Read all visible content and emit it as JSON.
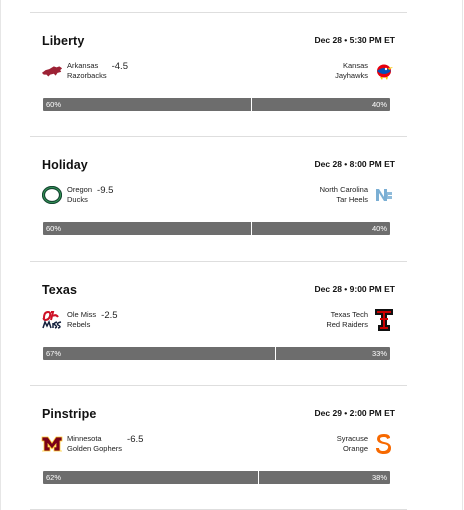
{
  "games": [
    {
      "bowl": "Liberty",
      "time": "Dec 28 • 5:30 PM ET",
      "away": {
        "line1": "Arkansas",
        "line2": "Razorbacks",
        "spread": "-4.5",
        "logo": "arkansas-razorback-logo",
        "color": "#9d2235"
      },
      "home": {
        "line1": "Kansas",
        "line2": "Jayhawks",
        "logo": "kansas-jayhawk-logo",
        "color": "#0051ba"
      },
      "pick": {
        "away_pct": "60%",
        "home_pct": "40%",
        "away_share": 0.6
      }
    },
    {
      "bowl": "Holiday",
      "time": "Dec 28 • 8:00 PM ET",
      "away": {
        "line1": "Oregon",
        "line2": "Ducks",
        "spread": "-9.5",
        "logo": "oregon-o-logo",
        "color": "#154733"
      },
      "home": {
        "line1": "North Carolina",
        "line2": "Tar Heels",
        "logo": "unc-nc-logo",
        "color": "#7bafd4"
      },
      "pick": {
        "away_pct": "60%",
        "home_pct": "40%",
        "away_share": 0.6
      }
    },
    {
      "bowl": "Texas",
      "time": "Dec 28 • 9:00 PM ET",
      "away": {
        "line1": "Ole Miss",
        "line2": "Rebels",
        "spread": "-2.5",
        "logo": "ole-miss-script-logo",
        "color": "#ce1126"
      },
      "home": {
        "line1": "Texas Tech",
        "line2": "Red Raiders",
        "logo": "texas-tech-double-t-logo",
        "color": "#cc0000"
      },
      "pick": {
        "away_pct": "67%",
        "home_pct": "33%",
        "away_share": 0.67
      }
    },
    {
      "bowl": "Pinstripe",
      "time": "Dec 29 • 2:00 PM ET",
      "away": {
        "line1": "Minnesota",
        "line2": "Golden Gophers",
        "spread": "-6.5",
        "logo": "minnesota-m-logo",
        "color": "#7a0019"
      },
      "home": {
        "line1": "Syracuse",
        "line2": "Orange",
        "logo": "syracuse-s-logo",
        "color": "#f76900"
      },
      "pick": {
        "away_pct": "62%",
        "home_pct": "38%",
        "away_share": 0.62
      }
    }
  ]
}
